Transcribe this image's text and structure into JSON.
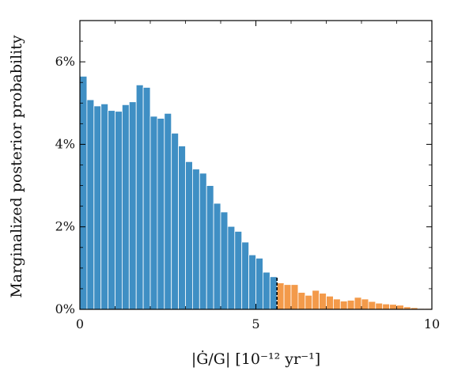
{
  "chart_data": {
    "type": "bar",
    "xlabel": "|Ġ/G|  [10⁻¹² yr⁻¹]",
    "ylabel": "Marginalized posterior probability",
    "xlim": [
      0,
      10
    ],
    "ylim": [
      0,
      7.0
    ],
    "x_ticks": [
      "0",
      "5",
      "10"
    ],
    "y_ticks": [
      "0%",
      "2%",
      "4%",
      "6%"
    ],
    "y_tick_values": [
      0,
      2,
      4,
      6
    ],
    "bin_width": 0.2,
    "threshold": 5.6,
    "colors": {
      "below_threshold": "#3f8fc4",
      "above_threshold": "#f39a4a",
      "threshold_line": "#000000"
    },
    "series": [
      {
        "values": [
          5.65,
          5.08,
          4.93,
          4.98,
          4.82,
          4.8,
          4.96,
          5.03,
          5.44,
          5.38,
          4.68,
          4.63,
          4.75,
          4.27,
          3.96,
          3.58,
          3.4,
          3.3,
          3.0,
          2.57,
          2.36,
          2.01,
          1.89,
          1.63,
          1.32,
          1.24,
          0.9,
          0.79,
          0.64,
          0.6,
          0.6,
          0.41,
          0.34,
          0.46,
          0.39,
          0.32,
          0.25,
          0.2,
          0.22,
          0.29,
          0.25,
          0.19,
          0.15,
          0.13,
          0.12,
          0.1,
          0.06,
          0.04,
          0.02,
          0.02
        ]
      }
    ]
  }
}
